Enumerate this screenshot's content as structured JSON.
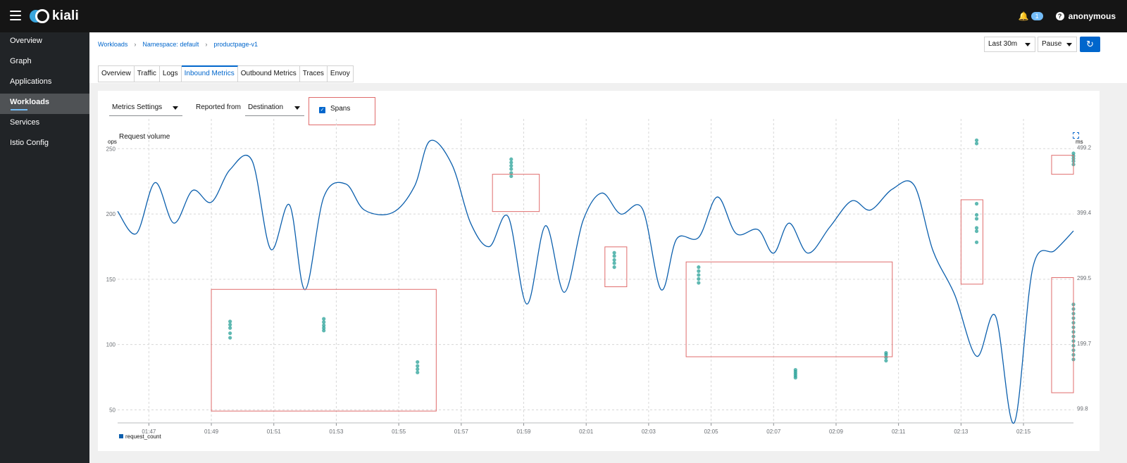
{
  "app": {
    "name": "kiali",
    "notification_count": "1",
    "username": "anonymous"
  },
  "sidebar": {
    "items": [
      {
        "label": "Overview"
      },
      {
        "label": "Graph"
      },
      {
        "label": "Applications"
      },
      {
        "label": "Workloads"
      },
      {
        "label": "Services"
      },
      {
        "label": "Istio Config"
      }
    ]
  },
  "breadcrumb": [
    "Workloads",
    "Namespace: default",
    "productpage-v1"
  ],
  "toolbar": {
    "range": "Last 30m",
    "refresh": "Pause"
  },
  "tabs": [
    "Overview",
    "Traffic",
    "Logs",
    "Inbound Metrics",
    "Outbound Metrics",
    "Traces",
    "Envoy"
  ],
  "controls": {
    "metrics_settings": "Metrics Settings",
    "reported_from_label": "Reported from",
    "reported_from_value": "Destination",
    "spans_label": "Spans",
    "spans_checked": true
  },
  "colors": {
    "line": "#0b5fad",
    "spans": "#2aa198",
    "highlight": "#e06c6c",
    "accent": "#0066cc"
  },
  "chart_data": {
    "type": "line",
    "title": "Request volume",
    "ylabel_left": "ops",
    "ylabel_right": "ms",
    "legend": [
      "request_count"
    ],
    "x_ticks": [
      "01:47",
      "01:49",
      "01:51",
      "01:53",
      "01:55",
      "01:57",
      "01:59",
      "02:01",
      "02:03",
      "02:05",
      "02:07",
      "02:09",
      "02:11",
      "02:13",
      "02:15"
    ],
    "x_range": [
      "01:46",
      "02:16.6"
    ],
    "y_left_ticks": [
      50,
      100,
      150,
      200,
      250
    ],
    "y_left_range": [
      40,
      262
    ],
    "y_right_ticks": [
      "99.8",
      "199.7",
      "299.5",
      "399.4",
      "499.2"
    ],
    "y_right_range": [
      77.9,
      521.1
    ],
    "series": [
      {
        "name": "request_count",
        "points": [
          [
            "01:46.0",
            202
          ],
          [
            "01:46.6",
            185
          ],
          [
            "01:47.2",
            224
          ],
          [
            "01:47.8",
            193
          ],
          [
            "01:48.4",
            218
          ],
          [
            "01:49.0",
            209
          ],
          [
            "01:49.6",
            234
          ],
          [
            "01:50.3",
            241
          ],
          [
            "01:50.9",
            173
          ],
          [
            "01:51.5",
            207
          ],
          [
            "01:52.0",
            142
          ],
          [
            "01:52.6",
            213
          ],
          [
            "01:53.3",
            223
          ],
          [
            "01:53.9",
            203
          ],
          [
            "01:54.8",
            201
          ],
          [
            "01:55.5",
            221
          ],
          [
            "01:56.0",
            256
          ],
          [
            "01:56.7",
            238
          ],
          [
            "01:57.3",
            193
          ],
          [
            "01:57.9",
            175
          ],
          [
            "01:58.5",
            198
          ],
          [
            "01:59.1",
            131
          ],
          [
            "01:59.7",
            191
          ],
          [
            "02:00.3",
            140
          ],
          [
            "02:00.9",
            195
          ],
          [
            "02:01.5",
            216
          ],
          [
            "02:02.1",
            200
          ],
          [
            "02:02.8",
            204
          ],
          [
            "02:03.4",
            142
          ],
          [
            "02:03.9",
            181
          ],
          [
            "02:04.6",
            182
          ],
          [
            "02:05.2",
            213
          ],
          [
            "02:05.8",
            185
          ],
          [
            "02:06.5",
            188
          ],
          [
            "02:07.0",
            170
          ],
          [
            "02:07.5",
            193
          ],
          [
            "02:08.1",
            170
          ],
          [
            "02:08.8",
            190
          ],
          [
            "02:09.5",
            210
          ],
          [
            "02:10.1",
            203
          ],
          [
            "02:10.8",
            219
          ],
          [
            "02:11.5",
            222
          ],
          [
            "02:12.1",
            172
          ],
          [
            "02:12.8",
            138
          ],
          [
            "02:13.5",
            91
          ],
          [
            "02:14.1",
            122
          ],
          [
            "02:14.7",
            40
          ],
          [
            "02:15.3",
            159
          ],
          [
            "02:16.0",
            172
          ],
          [
            "02:16.6",
            187
          ]
        ]
      },
      {
        "name": "spans",
        "axis": "right",
        "points": [
          [
            "01:49.6",
            208
          ],
          [
            "01:49.6",
            215
          ],
          [
            "01:49.6",
            223
          ],
          [
            "01:49.6",
            228
          ],
          [
            "01:49.6",
            233
          ],
          [
            "01:52.6",
            219
          ],
          [
            "01:52.6",
            223
          ],
          [
            "01:52.6",
            227
          ],
          [
            "01:52.6",
            232
          ],
          [
            "01:52.6",
            237
          ],
          [
            "01:55.6",
            155
          ],
          [
            "01:55.6",
            160
          ],
          [
            "01:55.6",
            165
          ],
          [
            "01:55.6",
            171
          ],
          [
            "01:58.6",
            455
          ],
          [
            "01:58.6",
            460
          ],
          [
            "01:58.6",
            466
          ],
          [
            "01:58.6",
            471
          ],
          [
            "01:58.6",
            476
          ],
          [
            "01:58.6",
            481
          ],
          [
            "02:01.9",
            316
          ],
          [
            "02:01.9",
            322
          ],
          [
            "02:01.9",
            327
          ],
          [
            "02:01.9",
            333
          ],
          [
            "02:01.9",
            338
          ],
          [
            "02:04.6",
            292
          ],
          [
            "02:04.6",
            298
          ],
          [
            "02:04.6",
            304
          ],
          [
            "02:04.6",
            310
          ],
          [
            "02:04.6",
            316
          ],
          [
            "02:07.7",
            147
          ],
          [
            "02:07.7",
            150
          ],
          [
            "02:07.7",
            153
          ],
          [
            "02:07.7",
            156
          ],
          [
            "02:07.7",
            159
          ],
          [
            "02:10.6",
            173
          ],
          [
            "02:10.6",
            178
          ],
          [
            "02:10.6",
            182
          ],
          [
            "02:10.6",
            185
          ],
          [
            "02:13.5",
            354
          ],
          [
            "02:13.5",
            371
          ],
          [
            "02:13.5",
            376
          ],
          [
            "02:13.5",
            390
          ],
          [
            "02:13.5",
            396
          ],
          [
            "02:13.5",
            413
          ],
          [
            "02:13.5",
            505
          ],
          [
            "02:13.5",
            510
          ],
          [
            "02:16.6",
            473
          ],
          [
            "02:16.6",
            478
          ],
          [
            "02:16.6",
            482
          ],
          [
            "02:16.6",
            486
          ],
          [
            "02:16.6",
            490
          ],
          [
            "02:16.6",
            175
          ],
          [
            "02:16.6",
            182
          ],
          [
            "02:16.6",
            189
          ],
          [
            "02:16.6",
            196
          ],
          [
            "02:16.6",
            203
          ],
          [
            "02:16.6",
            210
          ],
          [
            "02:16.6",
            217
          ],
          [
            "02:16.6",
            224
          ],
          [
            "02:16.6",
            231
          ],
          [
            "02:16.6",
            238
          ],
          [
            "02:16.6",
            245
          ],
          [
            "02:16.6",
            252
          ],
          [
            "02:16.6",
            259
          ]
        ]
      }
    ],
    "grid": true,
    "legend_position": "bottom-left"
  }
}
